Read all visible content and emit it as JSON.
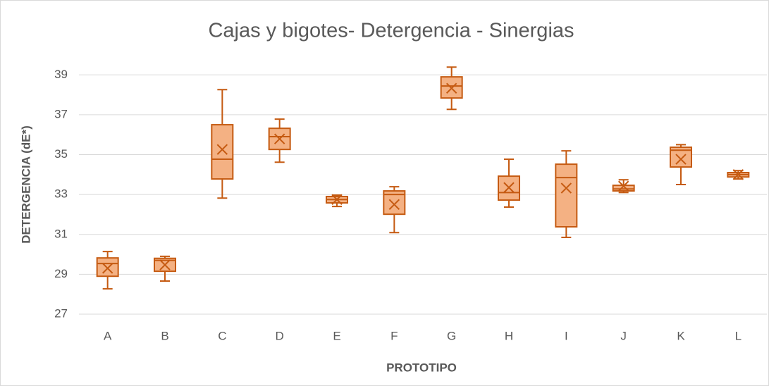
{
  "chart_data": {
    "type": "box",
    "title": "Cajas y bigotes- Detergencia - Sinergias",
    "x_label": "PROTOTIPO",
    "y_label": "DETERGENCIA (dE*)",
    "categories": [
      "A",
      "B",
      "C",
      "D",
      "E",
      "F",
      "G",
      "H",
      "I",
      "J",
      "K",
      "L"
    ],
    "min": [
      28.27,
      28.66,
      32.82,
      34.62,
      32.4,
      31.09,
      37.27,
      32.37,
      30.85,
      33.1,
      33.5,
      33.78
    ],
    "q1": [
      28.9,
      29.15,
      33.78,
      35.26,
      32.58,
      32.01,
      37.84,
      32.72,
      31.38,
      33.18,
      34.38,
      33.88
    ],
    "median": [
      29.54,
      29.7,
      34.77,
      35.9,
      32.75,
      33.0,
      38.44,
      33.1,
      33.85,
      33.28,
      35.22,
      34.0
    ],
    "q3": [
      29.82,
      29.8,
      36.5,
      36.32,
      32.9,
      33.18,
      38.9,
      33.92,
      34.52,
      33.46,
      35.37,
      34.1
    ],
    "max": [
      30.14,
      29.9,
      38.26,
      36.78,
      32.97,
      33.39,
      39.39,
      34.77,
      35.19,
      33.74,
      35.5,
      34.2
    ],
    "mean": [
      29.3,
      29.47,
      35.26,
      35.79,
      32.75,
      32.5,
      38.33,
      33.35,
      33.32,
      33.42,
      34.77,
      34.0
    ],
    "color": "#f4b183",
    "edge_color": "#c55a11",
    "ylim": [
      27,
      40
    ],
    "yticks": [
      27,
      29,
      31,
      33,
      35,
      37,
      39
    ],
    "grid": true
  }
}
